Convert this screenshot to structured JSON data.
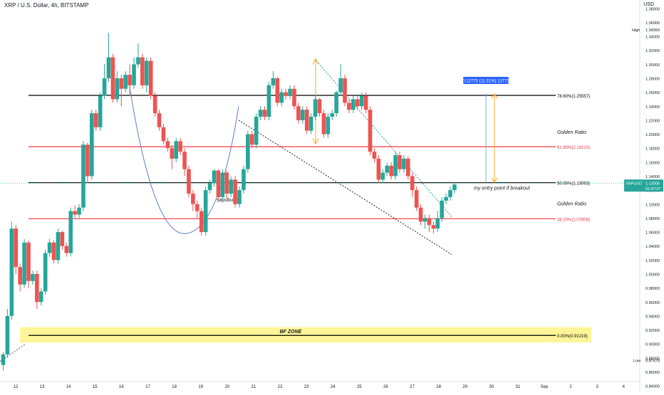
{
  "header": {
    "symbol_title": "XRP / U.S. Dollar, 4h, BITSTAMP",
    "currency": "USD"
  },
  "chart_data": {
    "type": "candlestick",
    "x_ticks": [
      "12",
      "13",
      "14",
      "15",
      "16",
      "17",
      "18",
      "19",
      "20",
      "21",
      "22",
      "23",
      "24",
      "25",
      "26",
      "27",
      "28",
      "29",
      "30",
      "31",
      "Sep",
      "2",
      "3",
      "4"
    ],
    "y_ticks": [
      1.38,
      1.36,
      1.34,
      1.32,
      1.3,
      1.28,
      1.26,
      1.24,
      1.22,
      1.2,
      1.18,
      1.16,
      1.14,
      1.12,
      1.1,
      1.08,
      1.06,
      1.04,
      1.02,
      1.0,
      0.98,
      0.96,
      0.94,
      0.92,
      0.9,
      0.88,
      0.86,
      0.84
    ],
    "ylim": [
      0.832,
      1.392
    ],
    "grid": false,
    "candles": [
      [
        0.87,
        0.885,
        0.862,
        0.888
      ],
      [
        0.885,
        0.94,
        0.88,
        0.95
      ],
      [
        0.94,
        1.065,
        0.935,
        1.075
      ],
      [
        1.065,
        1.01,
        1.0,
        1.07
      ],
      [
        1.01,
        0.985,
        0.975,
        1.015
      ],
      [
        0.985,
        1.045,
        0.98,
        1.05
      ],
      [
        1.045,
        0.99,
        0.98,
        1.048
      ],
      [
        0.99,
        1.0,
        0.985,
        1.005
      ],
      [
        1.0,
        0.96,
        0.95,
        1.005
      ],
      [
        0.96,
        0.975,
        0.955,
        0.98
      ],
      [
        0.975,
        1.03,
        0.97,
        1.035
      ],
      [
        1.03,
        1.045,
        1.025,
        1.05
      ],
      [
        1.045,
        1.02,
        1.015,
        1.048
      ],
      [
        1.02,
        1.06,
        1.015,
        1.065
      ],
      [
        1.06,
        1.04,
        1.035,
        1.062
      ],
      [
        1.04,
        1.03,
        1.025,
        1.045
      ],
      [
        1.03,
        1.09,
        1.025,
        1.095
      ],
      [
        1.09,
        1.085,
        1.08,
        1.098
      ],
      [
        1.085,
        1.095,
        1.08,
        1.1
      ],
      [
        1.095,
        1.185,
        1.09,
        1.19
      ],
      [
        1.185,
        1.14,
        1.13,
        1.188
      ],
      [
        1.14,
        1.23,
        1.135,
        1.235
      ],
      [
        1.23,
        1.21,
        1.205,
        1.235
      ],
      [
        1.21,
        1.255,
        1.205,
        1.26
      ],
      [
        1.255,
        1.28,
        1.25,
        1.3
      ],
      [
        1.28,
        1.31,
        1.275,
        1.345
      ],
      [
        1.31,
        1.25,
        1.245,
        1.315
      ],
      [
        1.25,
        1.28,
        1.245,
        1.29
      ],
      [
        1.28,
        1.265,
        1.24,
        1.285
      ],
      [
        1.265,
        1.285,
        1.26,
        1.29
      ],
      [
        1.285,
        1.27,
        1.255,
        1.3
      ],
      [
        1.27,
        1.3,
        1.265,
        1.31
      ],
      [
        1.3,
        1.31,
        1.295,
        1.33
      ],
      [
        1.31,
        1.27,
        1.265,
        1.315
      ],
      [
        1.27,
        1.305,
        1.26,
        1.31
      ],
      [
        1.305,
        1.255,
        1.25,
        1.31
      ],
      [
        1.255,
        1.23,
        1.225,
        1.26
      ],
      [
        1.23,
        1.21,
        1.205,
        1.235
      ],
      [
        1.21,
        1.19,
        1.185,
        1.215
      ],
      [
        1.19,
        1.18,
        1.175,
        1.195
      ],
      [
        1.18,
        1.165,
        1.15,
        1.185
      ],
      [
        1.165,
        1.19,
        1.16,
        1.195
      ],
      [
        1.19,
        1.175,
        1.17,
        1.195
      ],
      [
        1.175,
        1.15,
        1.14,
        1.18
      ],
      [
        1.15,
        1.115,
        1.11,
        1.155
      ],
      [
        1.115,
        1.1,
        1.09,
        1.12
      ],
      [
        1.1,
        1.09,
        1.08,
        1.105
      ],
      [
        1.09,
        1.06,
        1.055,
        1.095
      ],
      [
        1.06,
        1.12,
        1.055,
        1.125
      ],
      [
        1.12,
        1.13,
        1.115,
        1.135
      ],
      [
        1.13,
        1.148,
        1.125,
        1.15
      ],
      [
        1.148,
        1.11,
        1.105,
        1.15
      ],
      [
        1.11,
        1.145,
        1.105,
        1.15
      ],
      [
        1.145,
        1.115,
        1.108,
        1.148
      ],
      [
        1.115,
        1.135,
        1.11,
        1.14
      ],
      [
        1.135,
        1.1,
        1.095,
        1.14
      ],
      [
        1.1,
        1.12,
        1.095,
        1.125
      ],
      [
        1.12,
        1.15,
        1.115,
        1.155
      ],
      [
        1.15,
        1.2,
        1.145,
        1.205
      ],
      [
        1.2,
        1.185,
        1.18,
        1.205
      ],
      [
        1.185,
        1.225,
        1.18,
        1.23
      ],
      [
        1.225,
        1.235,
        1.22,
        1.24
      ],
      [
        1.235,
        1.225,
        1.22,
        1.24
      ],
      [
        1.225,
        1.27,
        1.22,
        1.275
      ],
      [
        1.27,
        1.28,
        1.265,
        1.29
      ],
      [
        1.28,
        1.245,
        1.24,
        1.282
      ],
      [
        1.245,
        1.26,
        1.24,
        1.265
      ],
      [
        1.26,
        1.255,
        1.25,
        1.265
      ],
      [
        1.255,
        1.265,
        1.25,
        1.27
      ],
      [
        1.265,
        1.24,
        1.235,
        1.27
      ],
      [
        1.24,
        1.22,
        1.215,
        1.245
      ],
      [
        1.22,
        1.235,
        1.215,
        1.24
      ],
      [
        1.235,
        1.205,
        1.2,
        1.24
      ],
      [
        1.205,
        1.225,
        1.2,
        1.23
      ],
      [
        1.225,
        1.25,
        1.22,
        1.255
      ],
      [
        1.25,
        1.23,
        1.225,
        1.252
      ],
      [
        1.23,
        1.2,
        1.195,
        1.235
      ],
      [
        1.2,
        1.225,
        1.195,
        1.23
      ],
      [
        1.225,
        1.23,
        1.22,
        1.235
      ],
      [
        1.23,
        1.26,
        1.225,
        1.262
      ],
      [
        1.26,
        1.28,
        1.255,
        1.3
      ],
      [
        1.28,
        1.245,
        1.24,
        1.285
      ],
      [
        1.245,
        1.235,
        1.23,
        1.25
      ],
      [
        1.235,
        1.25,
        1.23,
        1.255
      ],
      [
        1.25,
        1.24,
        1.235,
        1.255
      ],
      [
        1.24,
        1.255,
        1.235,
        1.26
      ],
      [
        1.255,
        1.235,
        1.23,
        1.26
      ],
      [
        1.235,
        1.175,
        1.17,
        1.24
      ],
      [
        1.175,
        1.165,
        1.16,
        1.18
      ],
      [
        1.165,
        1.135,
        1.13,
        1.17
      ],
      [
        1.135,
        1.145,
        1.13,
        1.15
      ],
      [
        1.145,
        1.155,
        1.14,
        1.16
      ],
      [
        1.155,
        1.14,
        1.135,
        1.16
      ],
      [
        1.14,
        1.17,
        1.135,
        1.175
      ],
      [
        1.17,
        1.15,
        1.145,
        1.175
      ],
      [
        1.15,
        1.165,
        1.145,
        1.17
      ],
      [
        1.165,
        1.14,
        1.135,
        1.168
      ],
      [
        1.14,
        1.12,
        1.11,
        1.145
      ],
      [
        1.12,
        1.095,
        1.09,
        1.125
      ],
      [
        1.095,
        1.075,
        1.07,
        1.1
      ],
      [
        1.075,
        1.08,
        1.065,
        1.085
      ],
      [
        1.08,
        1.07,
        1.06,
        1.085
      ],
      [
        1.07,
        1.065,
        1.058,
        1.075
      ],
      [
        1.065,
        1.08,
        1.06,
        1.09
      ],
      [
        1.08,
        1.105,
        1.075,
        1.11
      ],
      [
        1.105,
        1.11,
        1.1,
        1.115
      ],
      [
        1.11,
        1.12,
        1.105,
        1.125
      ],
      [
        1.12,
        1.128,
        1.115,
        1.131
      ]
    ],
    "fibonacci": [
      {
        "label": "78.60%(1.25557)",
        "value": 1.25557,
        "color": "#000000"
      },
      {
        "label": "61.80%(1.18210)",
        "value": 1.1821,
        "color": "#f23645"
      },
      {
        "label": "50.00%(1.13063)",
        "value": 1.13063,
        "color": "#000000"
      },
      {
        "label": "38.20%(1.07908)",
        "value": 1.07908,
        "color": "#f23645"
      },
      {
        "label": "0.00%(0.91219)",
        "value": 0.91219,
        "color": "#000000"
      }
    ],
    "annotations": {
      "golden_ratio_1": "Golden Ratio",
      "golden_ratio_2": "Golden Ratio",
      "bf_zone": "BF ZONE",
      "entry_note": "my entry point if breakout",
      "author": "sapubuntu",
      "measure": "0.12773 (11.31%) 12773"
    },
    "price_labels": {
      "high_label": "High",
      "high_value": "1.34999",
      "low_label": "Low",
      "low_value": "0.87678",
      "current_symbol": "XRPUSD",
      "current_value": "1.13006",
      "countdown": "01:47:27"
    },
    "colors": {
      "up": "#26a69a",
      "down": "#ef5350",
      "fib_red": "#f23645",
      "fib_black": "#000000",
      "zone": "#fff176",
      "measure_blue": "#2962ff",
      "arrow_yellow": "#f9a825",
      "trend_teal": "#26a69a",
      "curve_blue": "#5b7fc7"
    }
  }
}
